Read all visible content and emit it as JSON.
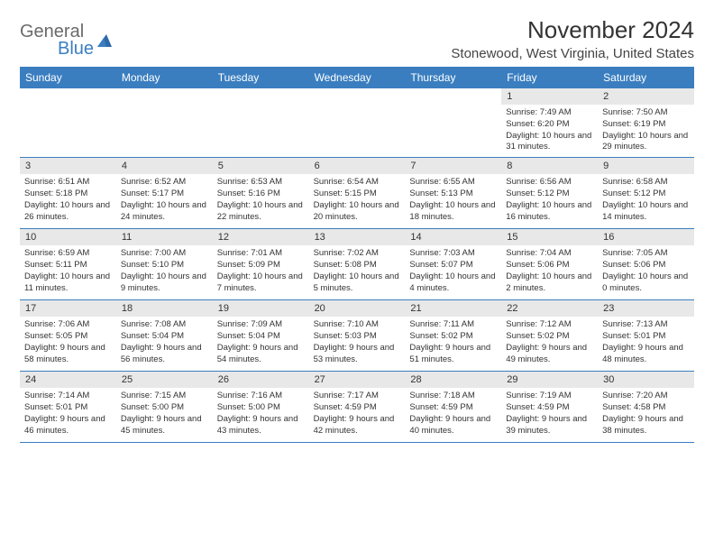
{
  "logo": {
    "general": "General",
    "blue": "Blue"
  },
  "title": {
    "month": "November 2024",
    "location": "Stonewood, West Virginia, United States"
  },
  "colors": {
    "header_bg": "#3a7ec0",
    "header_text": "#ffffff",
    "date_bg": "#e8e8e8",
    "text": "#333333",
    "logo_gray": "#6a6a6a",
    "logo_blue": "#3a7ec0",
    "border": "#3a7ec0",
    "bg": "#ffffff"
  },
  "day_names": [
    "Sunday",
    "Monday",
    "Tuesday",
    "Wednesday",
    "Thursday",
    "Friday",
    "Saturday"
  ],
  "weeks": [
    [
      {
        "n": "",
        "empty": true
      },
      {
        "n": "",
        "empty": true
      },
      {
        "n": "",
        "empty": true
      },
      {
        "n": "",
        "empty": true
      },
      {
        "n": "",
        "empty": true
      },
      {
        "n": "1",
        "sr": "Sunrise: 7:49 AM",
        "ss": "Sunset: 6:20 PM",
        "dl": "Daylight: 10 hours and 31 minutes."
      },
      {
        "n": "2",
        "sr": "Sunrise: 7:50 AM",
        "ss": "Sunset: 6:19 PM",
        "dl": "Daylight: 10 hours and 29 minutes."
      }
    ],
    [
      {
        "n": "3",
        "sr": "Sunrise: 6:51 AM",
        "ss": "Sunset: 5:18 PM",
        "dl": "Daylight: 10 hours and 26 minutes."
      },
      {
        "n": "4",
        "sr": "Sunrise: 6:52 AM",
        "ss": "Sunset: 5:17 PM",
        "dl": "Daylight: 10 hours and 24 minutes."
      },
      {
        "n": "5",
        "sr": "Sunrise: 6:53 AM",
        "ss": "Sunset: 5:16 PM",
        "dl": "Daylight: 10 hours and 22 minutes."
      },
      {
        "n": "6",
        "sr": "Sunrise: 6:54 AM",
        "ss": "Sunset: 5:15 PM",
        "dl": "Daylight: 10 hours and 20 minutes."
      },
      {
        "n": "7",
        "sr": "Sunrise: 6:55 AM",
        "ss": "Sunset: 5:13 PM",
        "dl": "Daylight: 10 hours and 18 minutes."
      },
      {
        "n": "8",
        "sr": "Sunrise: 6:56 AM",
        "ss": "Sunset: 5:12 PM",
        "dl": "Daylight: 10 hours and 16 minutes."
      },
      {
        "n": "9",
        "sr": "Sunrise: 6:58 AM",
        "ss": "Sunset: 5:12 PM",
        "dl": "Daylight: 10 hours and 14 minutes."
      }
    ],
    [
      {
        "n": "10",
        "sr": "Sunrise: 6:59 AM",
        "ss": "Sunset: 5:11 PM",
        "dl": "Daylight: 10 hours and 11 minutes."
      },
      {
        "n": "11",
        "sr": "Sunrise: 7:00 AM",
        "ss": "Sunset: 5:10 PM",
        "dl": "Daylight: 10 hours and 9 minutes."
      },
      {
        "n": "12",
        "sr": "Sunrise: 7:01 AM",
        "ss": "Sunset: 5:09 PM",
        "dl": "Daylight: 10 hours and 7 minutes."
      },
      {
        "n": "13",
        "sr": "Sunrise: 7:02 AM",
        "ss": "Sunset: 5:08 PM",
        "dl": "Daylight: 10 hours and 5 minutes."
      },
      {
        "n": "14",
        "sr": "Sunrise: 7:03 AM",
        "ss": "Sunset: 5:07 PM",
        "dl": "Daylight: 10 hours and 4 minutes."
      },
      {
        "n": "15",
        "sr": "Sunrise: 7:04 AM",
        "ss": "Sunset: 5:06 PM",
        "dl": "Daylight: 10 hours and 2 minutes."
      },
      {
        "n": "16",
        "sr": "Sunrise: 7:05 AM",
        "ss": "Sunset: 5:06 PM",
        "dl": "Daylight: 10 hours and 0 minutes."
      }
    ],
    [
      {
        "n": "17",
        "sr": "Sunrise: 7:06 AM",
        "ss": "Sunset: 5:05 PM",
        "dl": "Daylight: 9 hours and 58 minutes."
      },
      {
        "n": "18",
        "sr": "Sunrise: 7:08 AM",
        "ss": "Sunset: 5:04 PM",
        "dl": "Daylight: 9 hours and 56 minutes."
      },
      {
        "n": "19",
        "sr": "Sunrise: 7:09 AM",
        "ss": "Sunset: 5:04 PM",
        "dl": "Daylight: 9 hours and 54 minutes."
      },
      {
        "n": "20",
        "sr": "Sunrise: 7:10 AM",
        "ss": "Sunset: 5:03 PM",
        "dl": "Daylight: 9 hours and 53 minutes."
      },
      {
        "n": "21",
        "sr": "Sunrise: 7:11 AM",
        "ss": "Sunset: 5:02 PM",
        "dl": "Daylight: 9 hours and 51 minutes."
      },
      {
        "n": "22",
        "sr": "Sunrise: 7:12 AM",
        "ss": "Sunset: 5:02 PM",
        "dl": "Daylight: 9 hours and 49 minutes."
      },
      {
        "n": "23",
        "sr": "Sunrise: 7:13 AM",
        "ss": "Sunset: 5:01 PM",
        "dl": "Daylight: 9 hours and 48 minutes."
      }
    ],
    [
      {
        "n": "24",
        "sr": "Sunrise: 7:14 AM",
        "ss": "Sunset: 5:01 PM",
        "dl": "Daylight: 9 hours and 46 minutes."
      },
      {
        "n": "25",
        "sr": "Sunrise: 7:15 AM",
        "ss": "Sunset: 5:00 PM",
        "dl": "Daylight: 9 hours and 45 minutes."
      },
      {
        "n": "26",
        "sr": "Sunrise: 7:16 AM",
        "ss": "Sunset: 5:00 PM",
        "dl": "Daylight: 9 hours and 43 minutes."
      },
      {
        "n": "27",
        "sr": "Sunrise: 7:17 AM",
        "ss": "Sunset: 4:59 PM",
        "dl": "Daylight: 9 hours and 42 minutes."
      },
      {
        "n": "28",
        "sr": "Sunrise: 7:18 AM",
        "ss": "Sunset: 4:59 PM",
        "dl": "Daylight: 9 hours and 40 minutes."
      },
      {
        "n": "29",
        "sr": "Sunrise: 7:19 AM",
        "ss": "Sunset: 4:59 PM",
        "dl": "Daylight: 9 hours and 39 minutes."
      },
      {
        "n": "30",
        "sr": "Sunrise: 7:20 AM",
        "ss": "Sunset: 4:58 PM",
        "dl": "Daylight: 9 hours and 38 minutes."
      }
    ]
  ]
}
